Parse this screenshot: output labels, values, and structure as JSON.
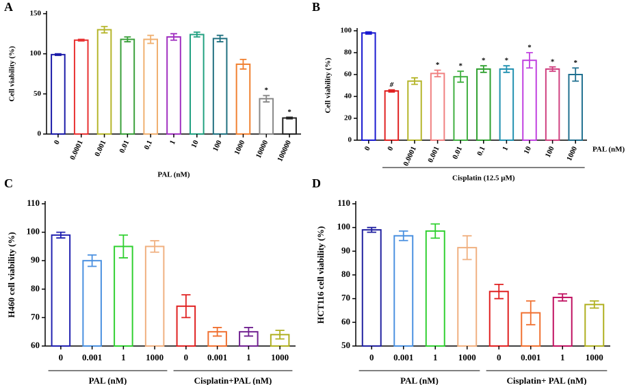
{
  "chart_data": [
    {
      "type": "bar",
      "title": "A",
      "xlabel": "PAL (nM)",
      "ylabel": "Cell viability (%)",
      "categories": [
        "0",
        "0.0001",
        "0.001",
        "0.01",
        "0.1",
        "1",
        "10",
        "100",
        "1000",
        "10000",
        "100000"
      ],
      "values": [
        99,
        117,
        130,
        118,
        118,
        121,
        124,
        119,
        87,
        44,
        20
      ],
      "errors": [
        1,
        1,
        4,
        3,
        5,
        4,
        3,
        4,
        6,
        4,
        1
      ],
      "colors": [
        "#1a1aa8",
        "#e83030",
        "#b5b52a",
        "#3aa03a",
        "#f0b070",
        "#a030c0",
        "#20a080",
        "#207080",
        "#f08030",
        "#888888",
        "#222222"
      ],
      "annotations": [
        {
          "text": "*",
          "index": 9
        },
        {
          "text": "*",
          "index": 10
        }
      ],
      "ylim": [
        0,
        150
      ],
      "yticks": [
        0,
        50,
        100,
        150
      ]
    },
    {
      "type": "bar",
      "title": "B",
      "xlabel": "PAL (nM)",
      "ylabel": "Cell viability (%)",
      "categories": [
        "0",
        "0",
        "0.0001",
        "0.001",
        "0.01",
        "0.1",
        "1",
        "10",
        "100",
        "1000"
      ],
      "values": [
        98,
        45,
        54,
        61,
        58,
        65,
        65,
        73,
        65,
        60
      ],
      "errors": [
        1,
        1,
        3,
        3,
        5,
        3,
        3,
        7,
        2,
        6
      ],
      "colors": [
        "#1a1ad0",
        "#e02020",
        "#b5b52a",
        "#f08080",
        "#40b040",
        "#30a030",
        "#2090b0",
        "#c040e0",
        "#d04080",
        "#207090"
      ],
      "annotations": [
        {
          "text": "#",
          "index": 1
        },
        {
          "text": "*",
          "index": 3
        },
        {
          "text": "*",
          "index": 4
        },
        {
          "text": "*",
          "index": 5
        },
        {
          "text": "*",
          "index": 6
        },
        {
          "text": "*",
          "index": 7
        },
        {
          "text": "*",
          "index": 8
        },
        {
          "text": "*",
          "index": 9
        }
      ],
      "groups": [
        {
          "label": "Cisplatin (12.5 μM)",
          "from": 1,
          "to": 9
        }
      ],
      "ylim": [
        0,
        100
      ],
      "yticks": [
        0,
        20,
        40,
        60,
        80,
        100
      ]
    },
    {
      "type": "bar",
      "title": "C",
      "ylabel": "H460 cell viability (%)",
      "categories": [
        "0",
        "0.001",
        "1",
        "1000",
        "0",
        "0.001",
        "1",
        "1000"
      ],
      "values": [
        99,
        90,
        95,
        95,
        74,
        65,
        65,
        64
      ],
      "errors": [
        1,
        2,
        4,
        2,
        4,
        1.5,
        1.5,
        1.5
      ],
      "colors": [
        "#2020b0",
        "#4a90e0",
        "#30d030",
        "#f0b080",
        "#e02020",
        "#f07030",
        "#702090",
        "#b0b020"
      ],
      "groups": [
        {
          "label": "PAL (nM)",
          "from": 0,
          "to": 3
        },
        {
          "label": "Cisplatin+PAL (nM)",
          "from": 4,
          "to": 7
        }
      ],
      "ylim": [
        60,
        110
      ],
      "yticks": [
        60,
        70,
        80,
        90,
        100,
        110
      ]
    },
    {
      "type": "bar",
      "title": "D",
      "ylabel": "HCT116 cell viability (%)",
      "categories": [
        "0",
        "0.001",
        "1",
        "1000",
        "0",
        "0.001",
        "1",
        "1000"
      ],
      "values": [
        99,
        96.5,
        98.5,
        91.5,
        73,
        64,
        70.5,
        67.5
      ],
      "errors": [
        1,
        2,
        3,
        5,
        3,
        5,
        1.5,
        1.5
      ],
      "colors": [
        "#2020a0",
        "#4a90e0",
        "#30d030",
        "#f0b080",
        "#e02020",
        "#f07030",
        "#c01060",
        "#b0b020"
      ],
      "groups": [
        {
          "label": "PAL (nM)",
          "from": 0,
          "to": 3
        },
        {
          "label": "Cisplatin+ PAL (nM)",
          "from": 4,
          "to": 7
        }
      ],
      "ylim": [
        50,
        110
      ],
      "yticks": [
        50,
        60,
        70,
        80,
        90,
        100,
        110
      ]
    }
  ]
}
